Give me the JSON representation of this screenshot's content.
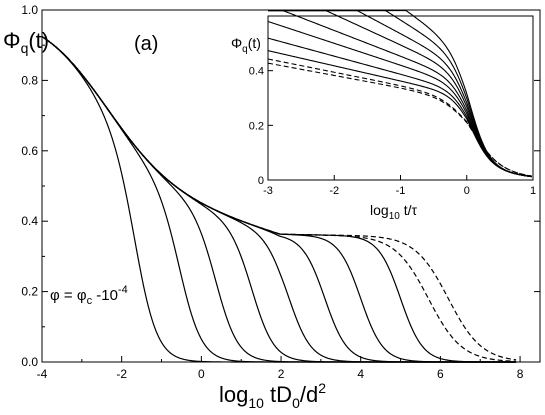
{
  "chart_data": [
    {
      "type": "line",
      "panel_label": "(a)",
      "ylabel_main": "Φ",
      "ylabel_sub": "q",
      "ylabel_tail": "(t)",
      "xlabel_main": "log",
      "xlabel_sub": "10",
      "xlabel_tail": " tD",
      "xlabel_sub2": "0",
      "xlabel_tail2": "/d",
      "xlabel_sup": "2",
      "annotation_main": "φ = φ",
      "annotation_sub": "c",
      "annotation_tail": " -10",
      "annotation_sup": "-4",
      "xlim": [
        -4,
        8.5
      ],
      "ylim": [
        0,
        1.0
      ],
      "xticks": [
        "-4",
        "-2",
        "0",
        "2",
        "4",
        "6",
        "8"
      ],
      "yticks": [
        "0.0",
        "0.2",
        "0.4",
        "0.6",
        "0.8",
        "1.0"
      ],
      "series": [
        {
          "style": "solid",
          "decay_x": -1.6
        },
        {
          "style": "solid",
          "decay_x": -0.5
        },
        {
          "style": "solid",
          "decay_x": 0.4
        },
        {
          "style": "solid",
          "decay_x": 1.3
        },
        {
          "style": "solid",
          "decay_x": 2.2
        },
        {
          "style": "solid",
          "decay_x": 3.1
        },
        {
          "style": "solid",
          "decay_x": 4.0
        },
        {
          "style": "solid",
          "decay_x": 5.0
        },
        {
          "style": "dashed",
          "decay_x": 5.7
        },
        {
          "style": "dashed",
          "decay_x": 6.2
        }
      ]
    },
    {
      "type": "line",
      "inset": true,
      "ylabel_main": "Φ",
      "ylabel_sub": "q",
      "ylabel_tail": "(t)",
      "xlabel_main": "log",
      "xlabel_sub": "10",
      "xlabel_tail": " t/τ",
      "xlim": [
        -3,
        1
      ],
      "ylim": [
        0,
        0.6
      ],
      "xticks": [
        "-3",
        "-2",
        "-1",
        "0",
        "1"
      ],
      "yticks": [
        "0",
        "0.2",
        "0.4"
      ],
      "series": [
        {
          "style": "solid",
          "plateau": 0.72
        },
        {
          "style": "solid",
          "plateau": 0.66
        },
        {
          "style": "solid",
          "plateau": 0.6
        },
        {
          "style": "solid",
          "plateau": 0.55
        },
        {
          "style": "solid",
          "plateau": 0.5
        },
        {
          "style": "solid",
          "plateau": 0.46
        },
        {
          "style": "solid",
          "plateau": 0.42
        },
        {
          "style": "solid",
          "plateau": 0.39
        },
        {
          "style": "dashed",
          "plateau": 0.37
        },
        {
          "style": "dashed",
          "plateau": 0.36
        }
      ]
    }
  ]
}
